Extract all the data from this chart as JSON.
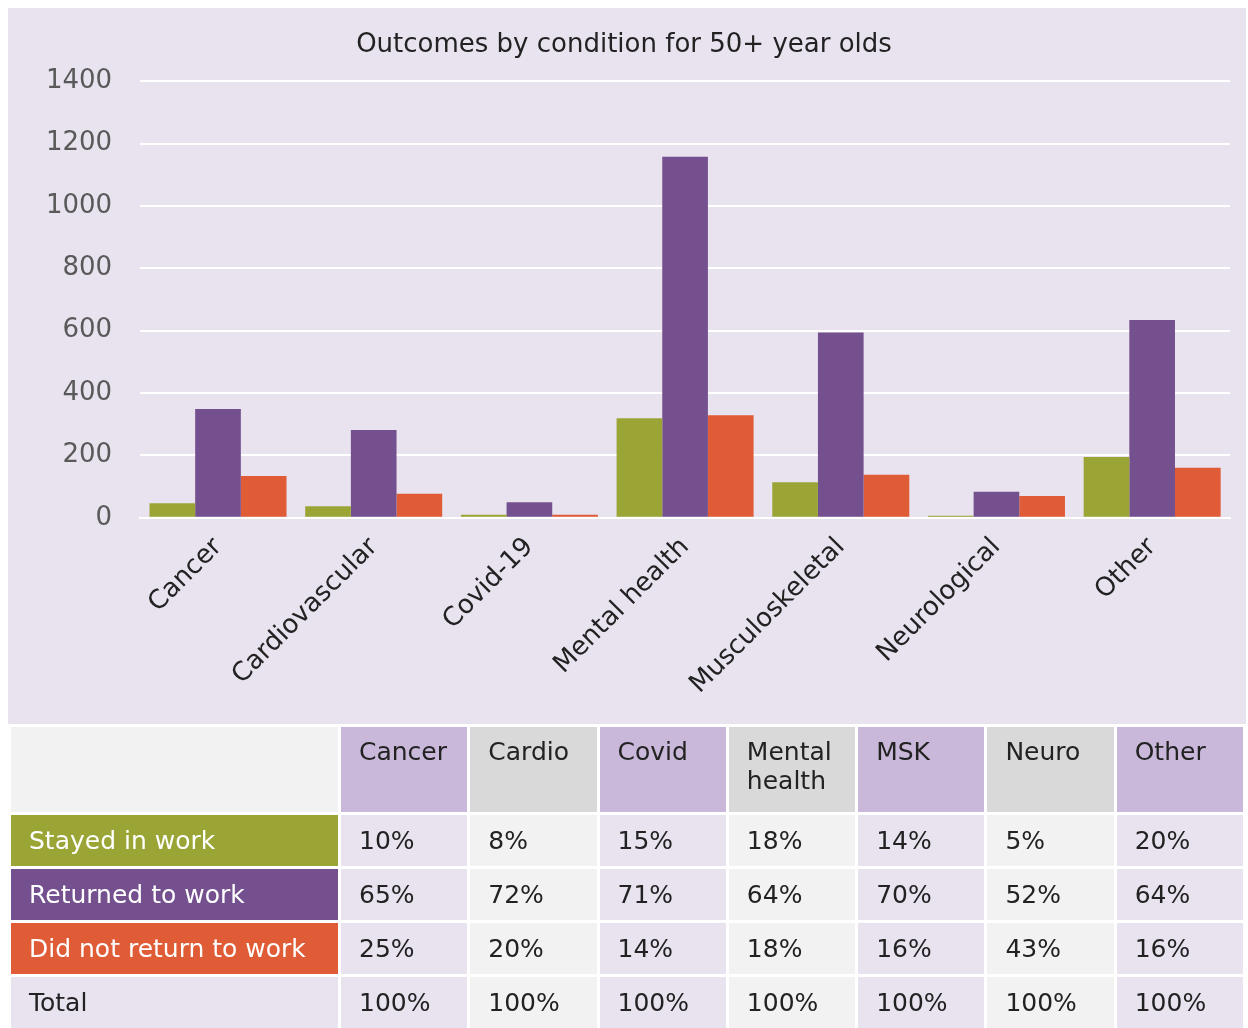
{
  "chart_data": [
    {
      "type": "bar",
      "title": "Outcomes by condition for 50+ year olds",
      "categories": [
        "Cancer",
        "Cardiovascular",
        "Covid-19",
        "Mental health",
        "Musculoskeletal",
        "Neurological",
        "Other"
      ],
      "series": [
        {
          "color": "#9aa535",
          "values": [
            47,
            37,
            10,
            319,
            114,
            7,
            195
          ]
        },
        {
          "color": "#74508f",
          "values": [
            349,
            282,
            50,
            1158,
            594,
            84,
            634
          ]
        },
        {
          "color": "#e05c37",
          "values": [
            134,
            77,
            10,
            329,
            138,
            70,
            161
          ]
        }
      ],
      "ylim": [
        0,
        1400
      ],
      "yticks": [
        0,
        200,
        400,
        600,
        800,
        1000,
        1200,
        1400
      ],
      "grid": "y"
    },
    {
      "type": "other",
      "categories": [
        "Cancer",
        "Cardio",
        "Covid",
        "Mental health",
        "MSK",
        "Neuro",
        "Other"
      ],
      "series": [
        {
          "name": "Stayed in work",
          "color": "#9aa535",
          "colors": [
            "#e9e2ef",
            "#f2f2f2",
            "#e9e2ef",
            "#f2f2f2",
            "#e9e2ef",
            "#f2f2f2",
            "#e9e2ef"
          ],
          "values": [
            10,
            8,
            15,
            18,
            14,
            5,
            20
          ],
          "value_labels": [
            "10%",
            "8%",
            "15%",
            "18%",
            "14%",
            "5%",
            "20%"
          ]
        },
        {
          "name": "Returned to work",
          "color": "#74508f",
          "colors": [
            "#e9e2ef",
            "#f2f2f2",
            "#e9e2ef",
            "#f2f2f2",
            "#e9e2ef",
            "#f2f2f2",
            "#e9e2ef"
          ],
          "values": [
            65,
            72,
            71,
            64,
            70,
            52,
            64
          ],
          "value_labels": [
            "65%",
            "72%",
            "71%",
            "64%",
            "70%",
            "52%",
            "64%"
          ]
        },
        {
          "name": "Did not return to work",
          "color": "#e05c37",
          "colors": [
            "#e9e2ef",
            "#f2f2f2",
            "#e9e2ef",
            "#f2f2f2",
            "#e9e2ef",
            "#f2f2f2",
            "#e9e2ef"
          ],
          "values": [
            25,
            20,
            14,
            18,
            16,
            43,
            16
          ],
          "value_labels": [
            "25%",
            "20%",
            "14%",
            "18%",
            "16%",
            "43%",
            "16%"
          ]
        },
        {
          "name": "Total",
          "color": "#e9e2ef",
          "colors": [
            "#e9e2ef",
            "#f2f2f2",
            "#e9e2ef",
            "#f2f2f2",
            "#e9e2ef",
            "#f2f2f2",
            "#e9e2ef"
          ],
          "values": [
            100,
            100,
            100,
            100,
            100,
            100,
            100
          ],
          "value_labels": [
            "100%",
            "100%",
            "100%",
            "100%",
            "100%",
            "100%",
            "100%"
          ]
        }
      ]
    }
  ]
}
